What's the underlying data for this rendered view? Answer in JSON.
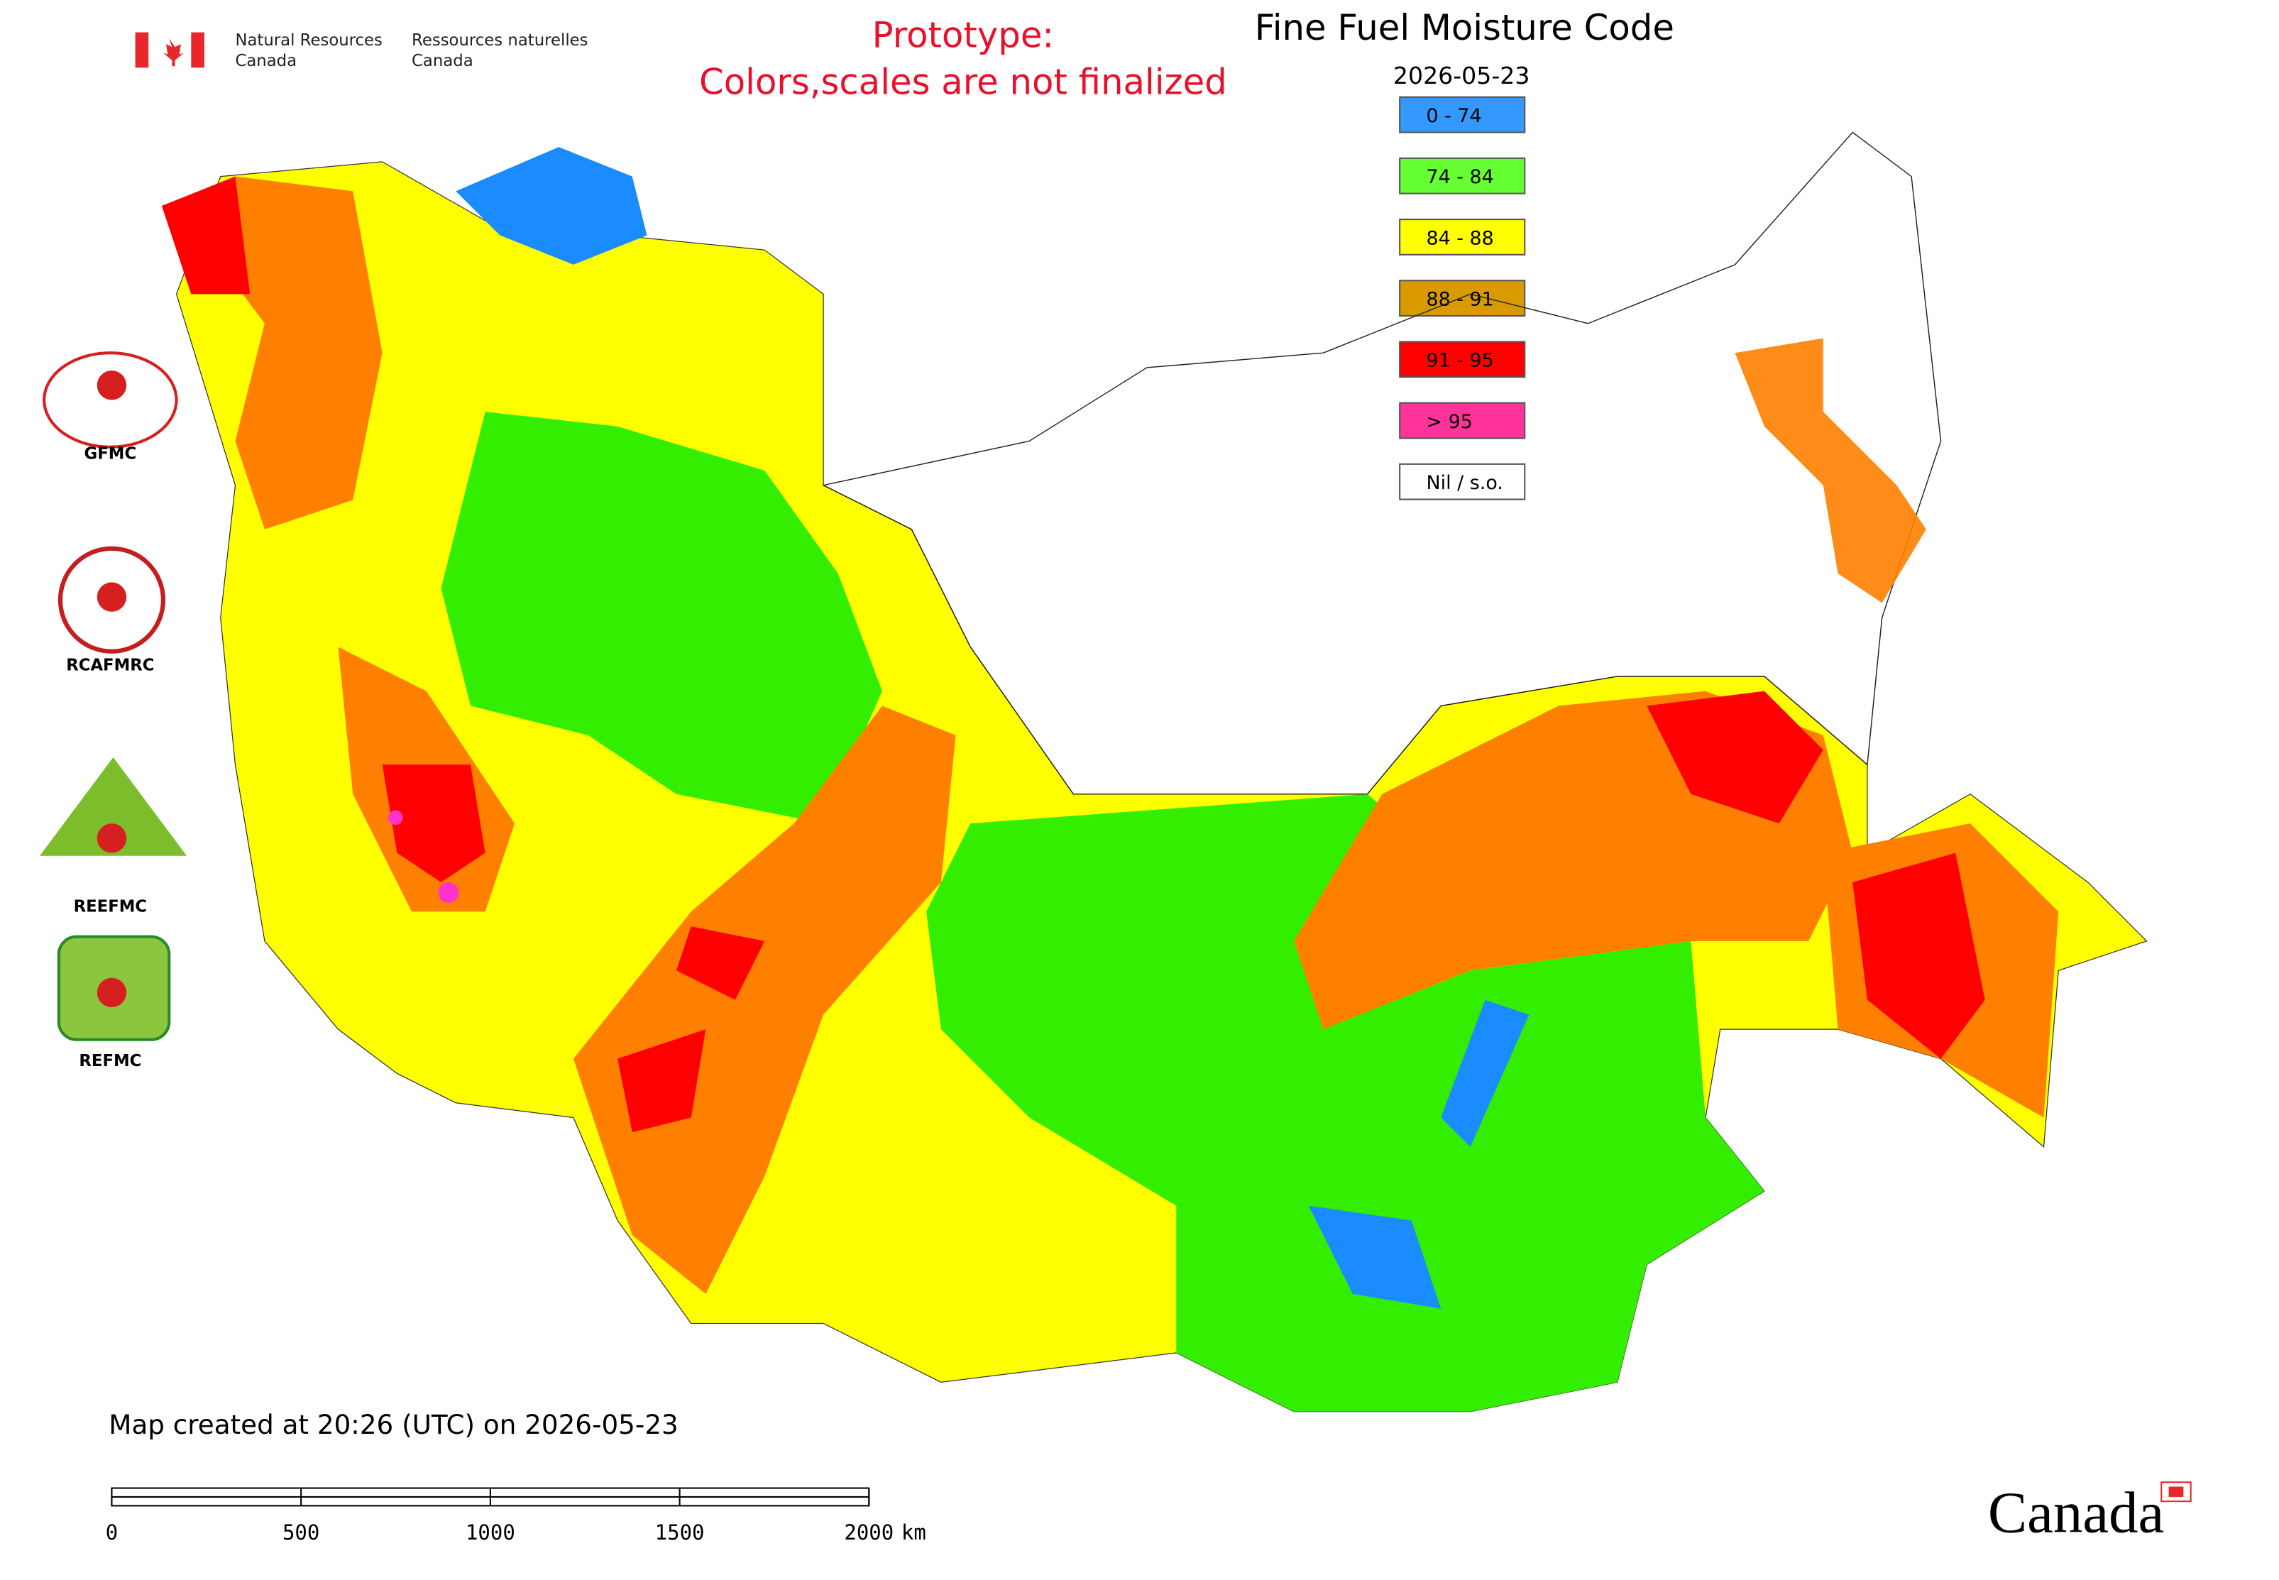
{
  "header": {
    "dept_en": [
      "Natural Resources",
      "Canada"
    ],
    "dept_fr": [
      "Ressources naturelles",
      "Canada"
    ]
  },
  "prototype_note": [
    "Prototype:",
    "Colors,scales are not finalized"
  ],
  "title": "Fine Fuel Moisture Code",
  "date": "2026-05-23",
  "legend": [
    {
      "label": "0 - 74",
      "color": "#3399ff"
    },
    {
      "label": "74 - 84",
      "color": "#66ff33"
    },
    {
      "label": "84 - 88",
      "color": "#ffff00"
    },
    {
      "label": "88 - 91",
      "color": "#d99a00"
    },
    {
      "label": "91 - 95",
      "color": "#ff0000"
    },
    {
      "label": "> 95",
      "color": "#ff3399"
    },
    {
      "label": "Nil / s.o.",
      "color": "#ffffff"
    }
  ],
  "partners": [
    "GFMC",
    "RCAFMRC",
    "REEFMC",
    "REFMC"
  ],
  "footer": "Map created at 20:26 (UTC) on 2026-05-23",
  "scale_bar": {
    "ticks": [
      0,
      500,
      1000,
      1500,
      2000
    ],
    "unit": "km"
  },
  "wordmark": "Canada"
}
